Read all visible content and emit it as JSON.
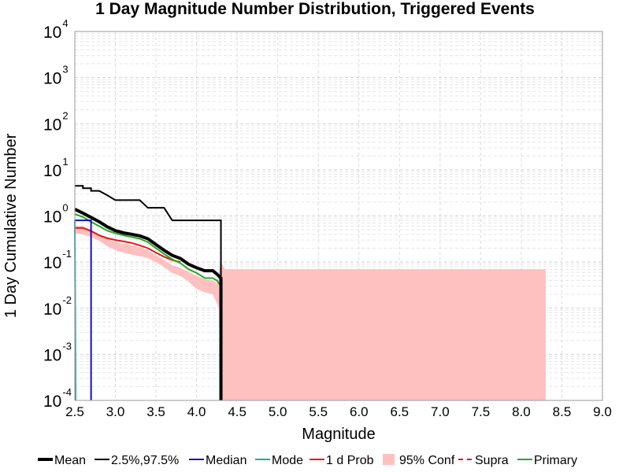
{
  "chart_data": {
    "type": "line",
    "title": "1 Day Magnitude Number Distribution, Triggered Events",
    "xlabel": "Magnitude",
    "ylabel": "1 Day Cumulative Number",
    "xlim": [
      2.5,
      9.0
    ],
    "ylim": [
      0.0001,
      10000
    ],
    "yscale": "log",
    "grid": true,
    "legend_position": "bottom",
    "x_ticks": [
      "2.5",
      "3.0",
      "3.5",
      "4.0",
      "4.5",
      "5.0",
      "5.5",
      "6.0",
      "6.5",
      "7.0",
      "7.5",
      "8.0",
      "8.5",
      "9.0"
    ],
    "y_ticks": [
      {
        "value": 0.0001,
        "base": "10",
        "exp": "-4"
      },
      {
        "value": 0.001,
        "base": "10",
        "exp": "-3"
      },
      {
        "value": 0.01,
        "base": "10",
        "exp": "-2"
      },
      {
        "value": 0.1,
        "base": "10",
        "exp": "-1"
      },
      {
        "value": 1,
        "base": "10",
        "exp": "0"
      },
      {
        "value": 10,
        "base": "10",
        "exp": "1"
      },
      {
        "value": 100,
        "base": "10",
        "exp": "2"
      },
      {
        "value": 1000,
        "base": "10",
        "exp": "3"
      },
      {
        "value": 10000,
        "base": "10",
        "exp": "4"
      }
    ],
    "series": [
      {
        "name": "95% Conf",
        "kind": "band",
        "color": "#ffc0c0",
        "upper": [
          [
            2.5,
            0.6
          ],
          [
            2.6,
            0.6
          ],
          [
            2.7,
            0.5
          ],
          [
            2.8,
            0.4
          ],
          [
            2.9,
            0.32
          ],
          [
            3.0,
            0.27
          ],
          [
            3.1,
            0.25
          ],
          [
            3.2,
            0.23
          ],
          [
            3.3,
            0.21
          ],
          [
            3.4,
            0.18
          ],
          [
            3.5,
            0.14
          ],
          [
            3.6,
            0.11
          ],
          [
            3.7,
            0.085
          ],
          [
            3.8,
            0.075
          ],
          [
            3.9,
            0.062
          ],
          [
            4.0,
            0.05
          ],
          [
            4.1,
            0.042
          ],
          [
            4.2,
            0.04
          ],
          [
            4.25,
            0.035
          ],
          [
            4.3,
            0.1
          ],
          [
            4.35,
            0.07
          ],
          [
            8.3,
            0.07
          ]
        ],
        "lower": [
          [
            8.3,
            0.0001
          ],
          [
            4.3,
            0.0001
          ],
          [
            4.3,
            0.008
          ],
          [
            4.25,
            0.013
          ],
          [
            4.2,
            0.02
          ],
          [
            4.1,
            0.022
          ],
          [
            4.0,
            0.026
          ],
          [
            3.9,
            0.038
          ],
          [
            3.8,
            0.05
          ],
          [
            3.7,
            0.058
          ],
          [
            3.6,
            0.078
          ],
          [
            3.5,
            0.1
          ],
          [
            3.4,
            0.12
          ],
          [
            3.3,
            0.135
          ],
          [
            3.2,
            0.145
          ],
          [
            3.1,
            0.16
          ],
          [
            3.0,
            0.18
          ],
          [
            2.9,
            0.22
          ],
          [
            2.8,
            0.29
          ],
          [
            2.7,
            0.35
          ],
          [
            2.6,
            0.4
          ],
          [
            2.5,
            0.42
          ]
        ]
      },
      {
        "name": "Mean",
        "kind": "line",
        "color": "#000000",
        "width": 4,
        "points": [
          [
            2.5,
            1.4
          ],
          [
            2.6,
            1.15
          ],
          [
            2.7,
            0.93
          ],
          [
            2.8,
            0.75
          ],
          [
            2.9,
            0.58
          ],
          [
            3.0,
            0.48
          ],
          [
            3.1,
            0.43
          ],
          [
            3.2,
            0.4
          ],
          [
            3.3,
            0.37
          ],
          [
            3.4,
            0.32
          ],
          [
            3.5,
            0.24
          ],
          [
            3.6,
            0.18
          ],
          [
            3.7,
            0.14
          ],
          [
            3.8,
            0.12
          ],
          [
            3.9,
            0.09
          ],
          [
            4.0,
            0.075
          ],
          [
            4.1,
            0.065
          ],
          [
            4.2,
            0.065
          ],
          [
            4.25,
            0.055
          ],
          [
            4.3,
            0.045
          ],
          [
            4.3,
            0.0001
          ]
        ]
      },
      {
        "name": "2.5%,97.5%",
        "kind": "line",
        "color": "#000000",
        "width": 2,
        "points": [
          [
            2.5,
            4.5
          ],
          [
            2.6,
            4.5
          ],
          [
            2.6,
            4.0
          ],
          [
            2.7,
            4.0
          ],
          [
            2.7,
            3.5
          ],
          [
            2.8,
            3.5
          ],
          [
            2.9,
            2.8
          ],
          [
            3.0,
            2.2
          ],
          [
            3.3,
            2.2
          ],
          [
            3.4,
            1.5
          ],
          [
            3.6,
            1.5
          ],
          [
            3.7,
            0.8
          ],
          [
            4.3,
            0.8
          ],
          [
            4.3,
            0.0001
          ]
        ]
      },
      {
        "name": "Median",
        "kind": "line",
        "color": "#1010cc",
        "width": 2,
        "points": [
          [
            2.5,
            0.8
          ],
          [
            2.7,
            0.8
          ],
          [
            2.7,
            0.0001
          ]
        ]
      },
      {
        "name": "Mode",
        "kind": "line",
        "color": "#20aaaa",
        "width": 2,
        "points": [
          [
            2.5,
            0.8
          ],
          [
            2.51,
            0.0001
          ]
        ]
      },
      {
        "name": "1 d Prob",
        "kind": "line",
        "color": "#ee1111",
        "width": 2,
        "points": [
          [
            2.5,
            0.55
          ],
          [
            2.6,
            0.55
          ],
          [
            2.7,
            0.47
          ],
          [
            2.8,
            0.38
          ],
          [
            2.9,
            0.33
          ],
          [
            3.0,
            0.3
          ],
          [
            3.1,
            0.28
          ],
          [
            3.2,
            0.26
          ],
          [
            3.3,
            0.23
          ],
          [
            3.4,
            0.2
          ],
          [
            3.5,
            0.16
          ],
          [
            3.6,
            0.13
          ],
          [
            3.7,
            0.11
          ],
          [
            3.8,
            0.1
          ]
        ]
      },
      {
        "name": "Supra",
        "kind": "line",
        "color": "#ee1111",
        "width": 2,
        "dashed": true,
        "points": []
      },
      {
        "name": "Primary",
        "kind": "line",
        "color": "#22aa22",
        "width": 2,
        "points": [
          [
            2.5,
            1.1
          ],
          [
            2.6,
            0.95
          ],
          [
            2.7,
            0.75
          ],
          [
            2.8,
            0.6
          ],
          [
            2.9,
            0.48
          ],
          [
            3.0,
            0.42
          ],
          [
            3.1,
            0.38
          ],
          [
            3.2,
            0.35
          ],
          [
            3.3,
            0.32
          ],
          [
            3.4,
            0.27
          ],
          [
            3.5,
            0.2
          ],
          [
            3.6,
            0.15
          ],
          [
            3.7,
            0.115
          ],
          [
            3.8,
            0.095
          ],
          [
            3.9,
            0.07
          ],
          [
            4.0,
            0.058
          ],
          [
            4.1,
            0.045
          ],
          [
            4.2,
            0.045
          ],
          [
            4.25,
            0.04
          ],
          [
            4.3,
            0.03
          ]
        ]
      }
    ]
  }
}
